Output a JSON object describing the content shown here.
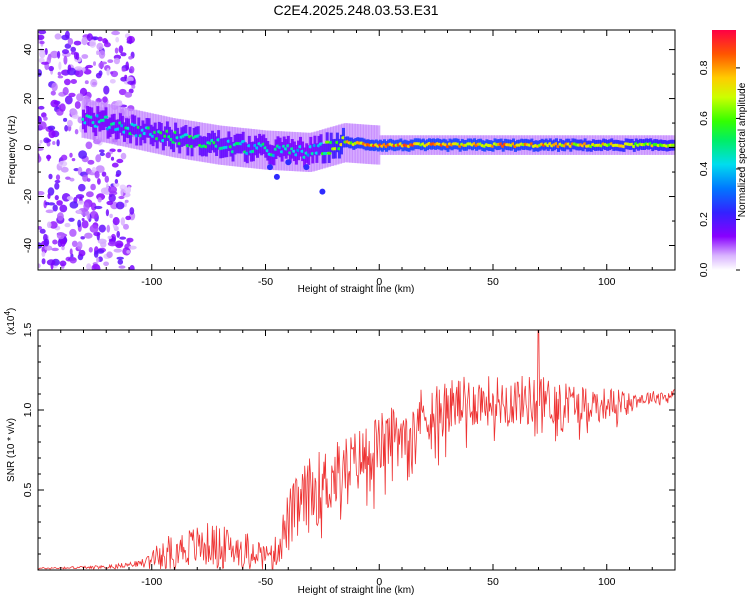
{
  "chart_data": [
    {
      "type": "heatmap",
      "title": "C2E4.2025.248.03.53.E31",
      "xlabel": "Height of straight line (km)",
      "ylabel": "Frequency (Hz)",
      "xlim": [
        -150,
        130
      ],
      "ylim": [
        -50,
        48
      ],
      "xticks": [
        -100,
        -50,
        0,
        50,
        100
      ],
      "yticks": [
        -40,
        -20,
        0,
        20,
        40
      ],
      "colorbar": {
        "label": "Normalized spectral amplitude",
        "range": [
          0,
          0.95
        ],
        "ticks": [
          0.0,
          0.2,
          0.4,
          0.6,
          0.8
        ]
      },
      "description_points": {
        "centerline_heights_km": [
          -130,
          -110,
          -90,
          -70,
          -50,
          -30,
          -15,
          0,
          50,
          130
        ],
        "centerline_freq_hz": [
          12,
          8,
          4,
          1,
          -1,
          -2,
          2,
          1,
          1,
          1
        ],
        "peak_amplitude": [
          0.5,
          0.55,
          0.6,
          0.6,
          0.55,
          0.5,
          0.85,
          0.95,
          0.95,
          0.8
        ]
      }
    },
    {
      "type": "line",
      "xlabel": "Height of straight line (km)",
      "ylabel": "SNR (10 * v/v)",
      "scale_label": "(x10",
      "scale_exp": "4",
      "scale_suffix": ")",
      "xlim": [
        -150,
        130
      ],
      "ylim": [
        0,
        1.5
      ],
      "xticks": [
        -100,
        -50,
        0,
        50,
        100
      ],
      "yticks": [
        0.5,
        1.0,
        1.5
      ],
      "ytick_labels": [
        "0.5",
        "1.0",
        "1.5"
      ],
      "series": [
        {
          "name": "SNR",
          "color": "#ee3333",
          "envelope_x": [
            -150,
            -120,
            -105,
            -100,
            -95,
            -85,
            -75,
            -65,
            -55,
            -50,
            -45,
            -40,
            -35,
            -30,
            -20,
            -10,
            0,
            10,
            20,
            30,
            40,
            50,
            60,
            70,
            80,
            90,
            100,
            110,
            120,
            130
          ],
          "envelope_base": [
            0.01,
            0.02,
            0.04,
            0.08,
            0.12,
            0.14,
            0.16,
            0.14,
            0.13,
            0.1,
            0.12,
            0.3,
            0.4,
            0.48,
            0.58,
            0.68,
            0.78,
            0.88,
            0.98,
            1.02,
            1.05,
            1.06,
            1.06,
            1.06,
            1.05,
            1.04,
            1.04,
            1.06,
            1.08,
            1.1
          ],
          "envelope_spread": [
            0.005,
            0.01,
            0.02,
            0.04,
            0.08,
            0.12,
            0.14,
            0.12,
            0.1,
            0.05,
            0.1,
            0.2,
            0.22,
            0.24,
            0.22,
            0.2,
            0.2,
            0.18,
            0.18,
            0.18,
            0.16,
            0.16,
            0.16,
            0.16,
            0.14,
            0.12,
            0.1,
            0.06,
            0.04,
            0.03
          ],
          "peak": [
            70,
            1.5
          ]
        }
      ]
    }
  ]
}
